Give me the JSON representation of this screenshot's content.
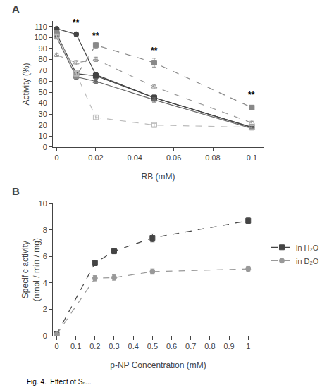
{
  "chart_data": [
    {
      "type": "line",
      "title": "A",
      "x_label": "RB (mM)",
      "y_label": "Activity (%)",
      "x": [
        0,
        0.01,
        0.02,
        0.05,
        0.1
      ],
      "xlim": [
        -0.002,
        0.106
      ],
      "ylim": [
        0,
        115
      ],
      "xticks": [
        0,
        0.02,
        0.04,
        0.06,
        0.08,
        0.1
      ],
      "yticks": [
        0,
        10,
        20,
        30,
        40,
        50,
        60,
        70,
        80,
        90,
        100,
        110
      ],
      "grid": false,
      "series": [
        {
          "values": [
            108,
            103,
            66,
            45,
            18
          ],
          "yerr": [
            1.5,
            2,
            2,
            2.5,
            1.5
          ],
          "color": "#444444",
          "marker": "circle",
          "line_style": "solid"
        },
        {
          "values": [
            103,
            67,
            65,
            45,
            18
          ],
          "yerr": [
            1.5,
            2,
            2,
            2,
            1.5
          ],
          "color": "#444444",
          "marker": "square",
          "line_style": "solid"
        },
        {
          "values": [
            100,
            64,
            60,
            43,
            17
          ],
          "yerr": [
            1.5,
            2,
            2,
            2,
            1.5
          ],
          "color": "#666666",
          "marker": "triangle-up",
          "line_style": "solid"
        },
        {
          "values": [
            84,
            77,
            80,
            55,
            22
          ],
          "yerr": [
            1.5,
            2,
            2,
            2,
            1.5
          ],
          "color": "#999999",
          "marker": "triangle-up-open",
          "line_style": "dash"
        },
        {
          "values": [
            104,
            65,
            93,
            77,
            36
          ],
          "yerr": [
            2,
            2,
            3,
            4,
            2
          ],
          "color": "#888888",
          "marker": "square",
          "line_style": "dash"
        },
        {
          "values": [
            101,
            67,
            27,
            20,
            18
          ],
          "yerr": [
            1.5,
            2,
            2,
            1.5,
            1.5
          ],
          "color": "#bbbbbb",
          "marker": "square-open",
          "line_style": "dash"
        }
      ],
      "annotations": [
        {
          "text": "**",
          "x": 0.01,
          "y": 108
        },
        {
          "text": "**",
          "x": 0.02,
          "y": 96
        },
        {
          "text": "**",
          "x": 0.05,
          "y": 82
        },
        {
          "text": "**",
          "x": 0.1,
          "y": 42
        }
      ]
    },
    {
      "type": "line",
      "title": "B",
      "x_label": "p-NP Concentration (mM)",
      "y_label": "Specific activity\n(nmol / min / mg)",
      "x": [
        0,
        0.2,
        0.3,
        0.5,
        1.0
      ],
      "xlim": [
        -0.02,
        1.08
      ],
      "ylim": [
        0,
        10
      ],
      "xticks": [
        0,
        0.1,
        0.2,
        0.3,
        0.4,
        0.5,
        0.6,
        0.7,
        0.8,
        0.9,
        1
      ],
      "yticks": [
        0,
        2,
        4,
        6,
        8,
        10
      ],
      "grid": false,
      "legend": "right",
      "series": [
        {
          "name": "in H₂O",
          "values": [
            0.1,
            5.5,
            6.4,
            7.4,
            8.7
          ],
          "yerr": [
            0.05,
            0.2,
            0.2,
            0.3,
            0.2
          ],
          "color": "#444444",
          "marker": "square",
          "line_style": "dash"
        },
        {
          "name": "in D₂O",
          "values": [
            0.1,
            4.35,
            4.4,
            4.85,
            5.05
          ],
          "yerr": [
            0.05,
            0.2,
            0.2,
            0.2,
            0.2
          ],
          "color": "#999999",
          "marker": "circle",
          "line_style": "dash"
        }
      ],
      "annotations": [
        {
          "text": "Fig. 4.  Effect of Sₙ..."
        }
      ]
    }
  ]
}
